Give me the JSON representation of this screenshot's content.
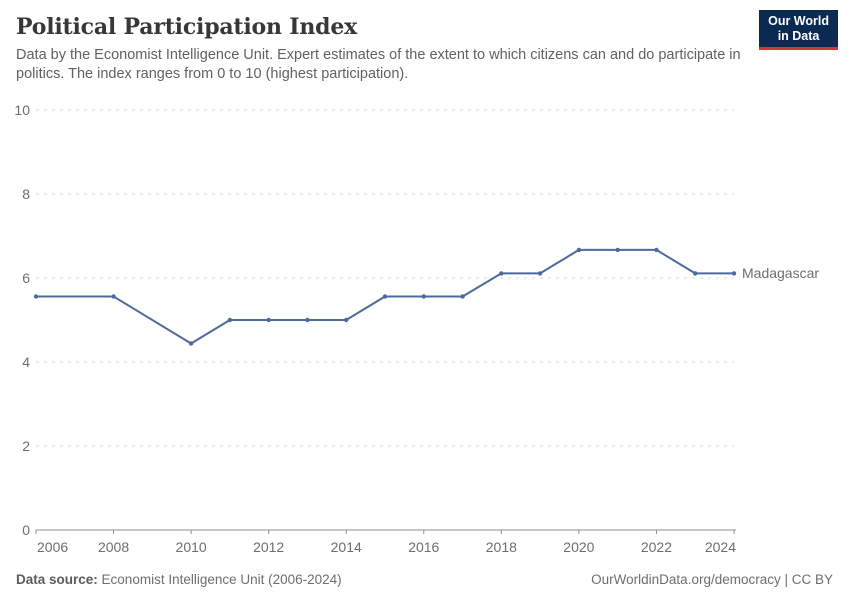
{
  "header": {
    "title": "Political Participation Index",
    "subtitle": "Data by the Economist Intelligence Unit. Expert estimates of the extent to which citizens can and do participate in politics. The index ranges from 0 to 10 (highest participation).",
    "logo_line1": "Our World",
    "logo_line2": "in Data",
    "logo_bg_color": "#0b2a52",
    "logo_accent_color": "#d4382e"
  },
  "footer": {
    "source_label": "Data source:",
    "source_text": "Economist Intelligence Unit (2006-2024)",
    "link_text": "OurWorldinData.org/democracy | CC BY"
  },
  "chart_data": {
    "type": "line",
    "title": "Political Participation Index",
    "xlabel": "",
    "ylabel": "",
    "xlim": [
      2006,
      2024
    ],
    "ylim": [
      0,
      10
    ],
    "x_ticks": [
      2006,
      2008,
      2010,
      2012,
      2014,
      2016,
      2018,
      2020,
      2022,
      2024
    ],
    "y_ticks": [
      0,
      2,
      4,
      6,
      8,
      10
    ],
    "grid": "horizontal-dashed",
    "grid_color": "#d9d9d9",
    "axis_color": "#8f8f8f",
    "tick_label_color": "#6e6e6e",
    "legend_position": "end-of-line-label",
    "series": [
      {
        "name": "Madagascar",
        "color": "#4c6a9c",
        "points": [
          [
            2006,
            5.56
          ],
          [
            2008,
            5.56
          ],
          [
            2010,
            4.44
          ],
          [
            2011,
            5.0
          ],
          [
            2012,
            5.0
          ],
          [
            2013,
            5.0
          ],
          [
            2014,
            5.0
          ],
          [
            2015,
            5.56
          ],
          [
            2016,
            5.56
          ],
          [
            2017,
            5.56
          ],
          [
            2018,
            6.11
          ],
          [
            2019,
            6.11
          ],
          [
            2020,
            6.67
          ],
          [
            2021,
            6.67
          ],
          [
            2022,
            6.67
          ],
          [
            2023,
            6.11
          ],
          [
            2024,
            6.11
          ]
        ]
      }
    ]
  }
}
